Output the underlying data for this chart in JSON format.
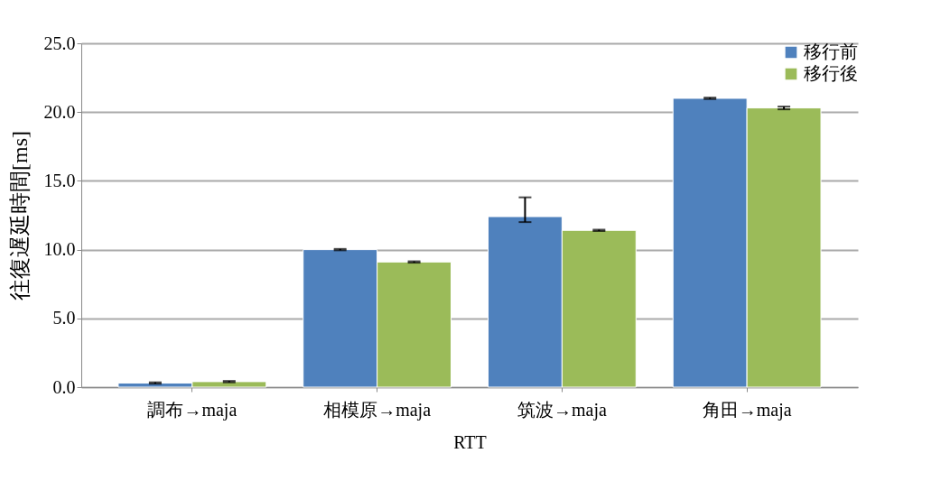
{
  "chart_data": {
    "type": "bar",
    "ylabel": "往復遅延時間[ms]",
    "xlabel": "RTT",
    "categories": [
      "調布→maja",
      "相模原→maja",
      "筑波→maja",
      "角田→maja"
    ],
    "series": [
      {
        "name": "移行前",
        "color": "#4f81bd",
        "values": [
          0.3,
          10.0,
          12.4,
          21.0
        ],
        "errors": [
          0.05,
          0.05,
          [
            12.0,
            13.8
          ],
          0.05
        ]
      },
      {
        "name": "移行後",
        "color": "#9bbb59",
        "values": [
          0.4,
          9.1,
          11.4,
          20.3
        ],
        "errors": [
          0.05,
          0.05,
          0.05,
          0.1
        ]
      }
    ],
    "ylim": [
      0,
      25
    ],
    "yticks": [
      {
        "value": 0,
        "label": "0.0"
      },
      {
        "value": 5,
        "label": "5.0"
      },
      {
        "value": 10,
        "label": "10.0"
      },
      {
        "value": 15,
        "label": "15.0"
      },
      {
        "value": 20,
        "label": "20.0"
      },
      {
        "value": 25,
        "label": "25.0"
      }
    ],
    "grid": "y",
    "legend": "top right"
  }
}
